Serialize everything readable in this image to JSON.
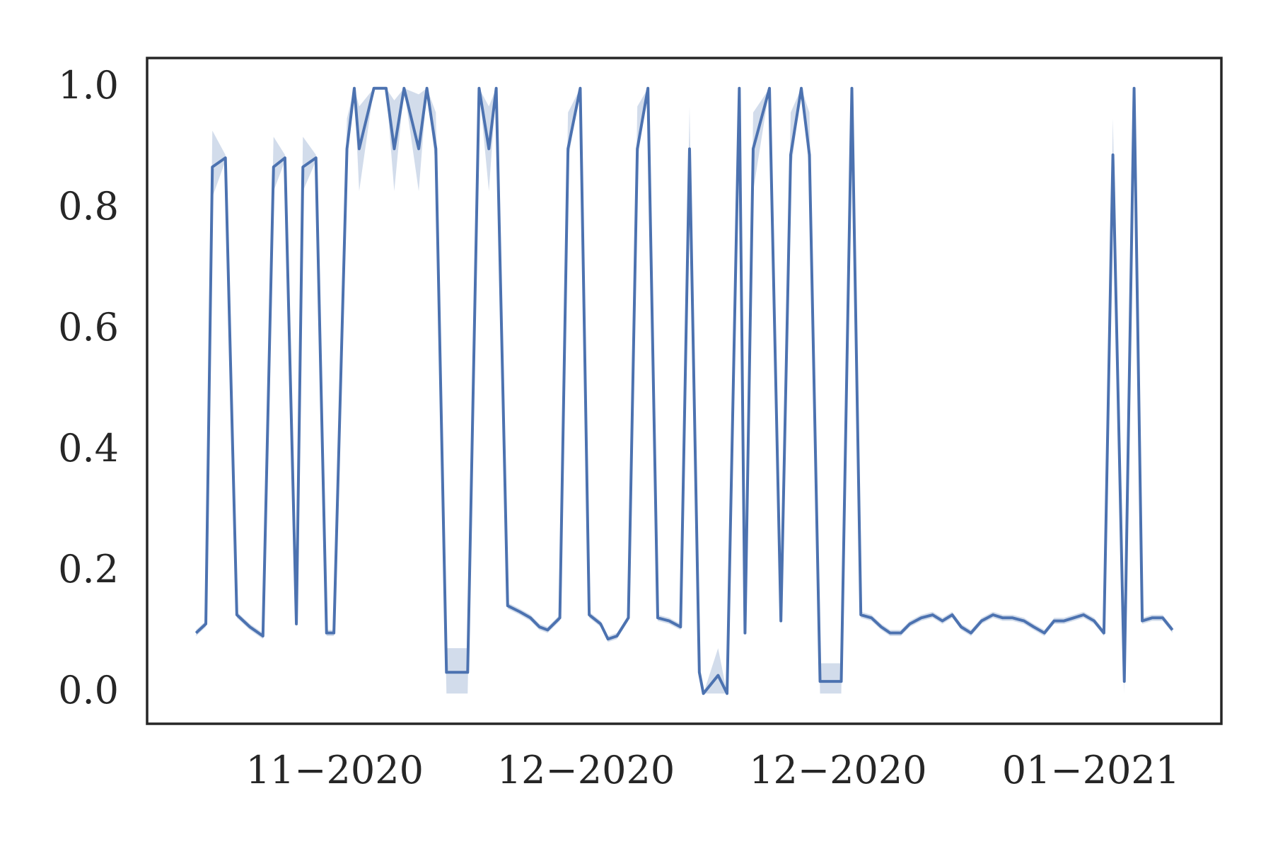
{
  "chart_data": {
    "type": "line",
    "x": [
      60,
      72,
      80,
      96,
      110,
      126,
      142,
      155,
      169,
      183,
      191,
      207,
      220,
      229,
      245,
      254,
      260,
      278,
      293,
      303,
      315,
      333,
      343,
      354,
      367,
      393,
      407,
      419,
      428,
      442,
      457,
      470,
      481,
      491,
      506,
      516,
      531,
      542,
      556,
      565,
      576,
      590,
      601,
      614,
      626,
      640,
      654,
      665,
      677,
      682,
      700,
      711,
      726,
      733,
      743,
      763,
      777,
      789,
      802,
      812,
      825,
      851,
      864,
      875,
      888,
      900,
      911,
      924,
      935,
      949,
      963,
      975,
      987,
      998,
      1010,
      1023,
      1037,
      1049,
      1061,
      1075,
      1087,
      1100,
      1112,
      1124,
      1136,
      1148,
      1161,
      1173,
      1184,
      1198,
      1210,
      1220,
      1232,
      1245,
      1257
    ],
    "series": [
      {
        "color": "#4c72b0",
        "values": [
          0.1,
          0.115,
          0.87,
          0.885,
          0.13,
          0.11,
          0.095,
          0.87,
          0.885,
          0.115,
          0.87,
          0.885,
          0.1,
          0.1,
          0.9,
          1.0,
          0.9,
          1.0,
          1.0,
          0.9,
          1.0,
          0.9,
          1.0,
          0.9,
          0.035,
          0.035,
          1.0,
          0.9,
          1.0,
          0.145,
          0.135,
          0.125,
          0.11,
          0.105,
          0.125,
          0.9,
          1.0,
          0.13,
          0.115,
          0.09,
          0.095,
          0.125,
          0.9,
          1.0,
          0.125,
          0.12,
          0.11,
          0.9,
          0.035,
          0,
          0.03,
          0,
          1.0,
          0.1,
          0.9,
          1.0,
          0.12,
          0.89,
          1.0,
          0.89,
          0.02,
          0.02,
          1.0,
          0.13,
          0.125,
          0.11,
          0.1,
          0.1,
          0.115,
          0.125,
          0.13,
          0.12,
          0.13,
          0.11,
          0.1,
          0.12,
          0.13,
          0.125,
          0.125,
          0.12,
          0.11,
          0.1,
          0.12,
          0.12,
          0.125,
          0.13,
          0.12,
          0.1,
          0.89,
          0.02,
          1.0,
          0.12,
          0.125,
          0.125,
          0.105
        ],
        "lower": [
          0.095,
          0.11,
          0.82,
          0.88,
          0.125,
          0.105,
          0.09,
          0.83,
          0.88,
          0.11,
          0.83,
          0.88,
          0.095,
          0.095,
          0.88,
          1.0,
          0.83,
          1.0,
          1.0,
          0.83,
          1.0,
          0.83,
          1.0,
          0.87,
          0,
          0,
          1.0,
          0.83,
          1.0,
          0.14,
          0.13,
          0.12,
          0.105,
          0.1,
          0.12,
          0.88,
          1.0,
          0.125,
          0.11,
          0.085,
          0.09,
          0.12,
          0.88,
          1.0,
          0.12,
          0.115,
          0.105,
          0.88,
          0.03,
          0,
          0,
          0,
          1.0,
          0.095,
          0.83,
          1.0,
          0.115,
          0.86,
          1.0,
          0.86,
          0,
          0,
          1.0,
          0.125,
          0.12,
          0.105,
          0.095,
          0.095,
          0.11,
          0.12,
          0.125,
          0.115,
          0.125,
          0.105,
          0.095,
          0.115,
          0.125,
          0.12,
          0.12,
          0.115,
          0.105,
          0.095,
          0.115,
          0.115,
          0.12,
          0.125,
          0.115,
          0.095,
          0.85,
          0,
          1.0,
          0.115,
          0.12,
          0.12,
          0.1
        ],
        "upper": [
          0.105,
          0.12,
          0.93,
          0.89,
          0.135,
          0.115,
          0.1,
          0.92,
          0.89,
          0.12,
          0.92,
          0.89,
          0.105,
          0.105,
          0.95,
          1.0,
          0.97,
          1.0,
          1.0,
          0.98,
          1.0,
          0.99,
          1.0,
          0.96,
          0.075,
          0.075,
          1.0,
          0.97,
          1.0,
          0.15,
          0.14,
          0.13,
          0.115,
          0.11,
          0.13,
          0.96,
          1.0,
          0.135,
          0.12,
          0.095,
          0.1,
          0.13,
          0.97,
          1.0,
          0.13,
          0.125,
          0.115,
          0.97,
          0.04,
          0,
          0.075,
          0,
          1.0,
          0.105,
          0.96,
          1.0,
          0.125,
          0.96,
          1.0,
          0.96,
          0.05,
          0.05,
          1.0,
          0.135,
          0.13,
          0.115,
          0.105,
          0.105,
          0.12,
          0.13,
          0.135,
          0.125,
          0.135,
          0.115,
          0.105,
          0.125,
          0.135,
          0.13,
          0.13,
          0.125,
          0.115,
          0.105,
          0.125,
          0.125,
          0.13,
          0.135,
          0.125,
          0.105,
          0.95,
          0.04,
          1.0,
          0.125,
          0.13,
          0.13,
          0.11
        ]
      }
    ],
    "xlim": [
      0,
      1317
    ],
    "xticks": [
      {
        "value": 230,
        "label": "11−2020"
      },
      {
        "value": 538,
        "label": "12−2020"
      },
      {
        "value": 847,
        "label": "12−2020"
      },
      {
        "value": 1157,
        "label": "01−2021"
      }
    ],
    "ylim": [
      -0.05,
      1.05
    ],
    "yticks": [
      {
        "value": 0,
        "label": "0.0"
      },
      0.2,
      0.4,
      0.6,
      0.8,
      {
        "value": 1,
        "label": "1.0"
      }
    ],
    "grid": false
  }
}
